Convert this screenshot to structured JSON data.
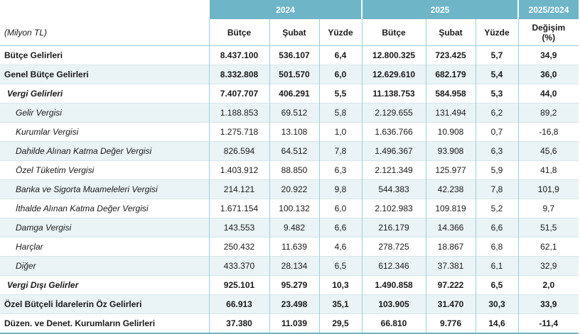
{
  "header": {
    "year_2024": "2024",
    "year_2025": "2025",
    "change_period": "2025/2024",
    "unit_label": "(Milyon TL)",
    "col_budget": "Bütçe",
    "col_february": "Şubat",
    "col_percent": "Yüzde",
    "col_change": "Değişim",
    "col_change_unit": "(%)"
  },
  "rows": [
    {
      "label": "Bütçe Gelirleri",
      "b24": "8.437.100",
      "s24": "536.107",
      "p24": "6,4",
      "b25": "12.800.325",
      "s25": "723.425",
      "p25": "5,7",
      "chg": "34,9"
    },
    {
      "label": "Genel Bütçe Gelirleri",
      "b24": "8.332.808",
      "s24": "501.570",
      "p24": "6,0",
      "b25": "12.629.610",
      "s25": "682.179",
      "p25": "5,4",
      "chg": "36,0"
    },
    {
      "label": "Vergi Gelirleri",
      "b24": "7.407.707",
      "s24": "406.291",
      "p24": "5,5",
      "b25": "11.138.753",
      "s25": "584.958",
      "p25": "5,3",
      "chg": "44,0"
    },
    {
      "label": "Gelir Vergisi",
      "b24": "1.188.853",
      "s24": "69.512",
      "p24": "5,8",
      "b25": "2.129.655",
      "s25": "131.494",
      "p25": "6,2",
      "chg": "89,2"
    },
    {
      "label": "Kurumlar Vergisi",
      "b24": "1.275.718",
      "s24": "13.108",
      "p24": "1,0",
      "b25": "1.636.766",
      "s25": "10.908",
      "p25": "0,7",
      "chg": "-16,8"
    },
    {
      "label": "Dahilde Alınan Katma Değer Vergisi",
      "b24": "826.594",
      "s24": "64.512",
      "p24": "7,8",
      "b25": "1.496.367",
      "s25": "93.908",
      "p25": "6,3",
      "chg": "45,6"
    },
    {
      "label": "Özel Tüketim Vergisi",
      "b24": "1.403.912",
      "s24": "88.850",
      "p24": "6,3",
      "b25": "2.121.349",
      "s25": "125.977",
      "p25": "5,9",
      "chg": "41,8"
    },
    {
      "label": "Banka ve Sigorta Muameleleri Vergisi",
      "b24": "214.121",
      "s24": "20.922",
      "p24": "9,8",
      "b25": "544.383",
      "s25": "42.238",
      "p25": "7,8",
      "chg": "101,9"
    },
    {
      "label": "İthalde Alınan Katma Değer Vergisi",
      "b24": "1.671.154",
      "s24": "100.132",
      "p24": "6,0",
      "b25": "2.102.983",
      "s25": "109.819",
      "p25": "5,2",
      "chg": "9,7"
    },
    {
      "label": "Damga Vergisi",
      "b24": "143.553",
      "s24": "9.482",
      "p24": "6,6",
      "b25": "216.179",
      "s25": "14.366",
      "p25": "6,6",
      "chg": "51,5"
    },
    {
      "label": "Harçlar",
      "b24": "250.432",
      "s24": "11.639",
      "p24": "4,6",
      "b25": "278.725",
      "s25": "18.867",
      "p25": "6,8",
      "chg": "62,1"
    },
    {
      "label": "Diğer",
      "b24": "433.370",
      "s24": "28.134",
      "p24": "6,5",
      "b25": "612.346",
      "s25": "37.381",
      "p25": "6,1",
      "chg": "32,9"
    },
    {
      "label": "Vergi Dışı Gelirler",
      "b24": "925.101",
      "s24": "95.279",
      "p24": "10,3",
      "b25": "1.490.858",
      "s25": "97.222",
      "p25": "6,5",
      "chg": "2,0"
    },
    {
      "label": "Özel Bütçeli İdarelerin Öz Gelirleri",
      "b24": "66.913",
      "s24": "23.498",
      "p24": "35,1",
      "b25": "103.905",
      "s25": "31.470",
      "p25": "30,3",
      "chg": "33,9"
    },
    {
      "label": "Düzen. ve Denet. Kurumların Gelirleri",
      "b24": "37.380",
      "s24": "11.039",
      "p24": "29,5",
      "b25": "66.810",
      "s25": "9.776",
      "p25": "14,6",
      "chg": "-11,4"
    }
  ],
  "colors": {
    "header_bg": "#6fb5c8",
    "row_shade": "#eaf3f6"
  }
}
